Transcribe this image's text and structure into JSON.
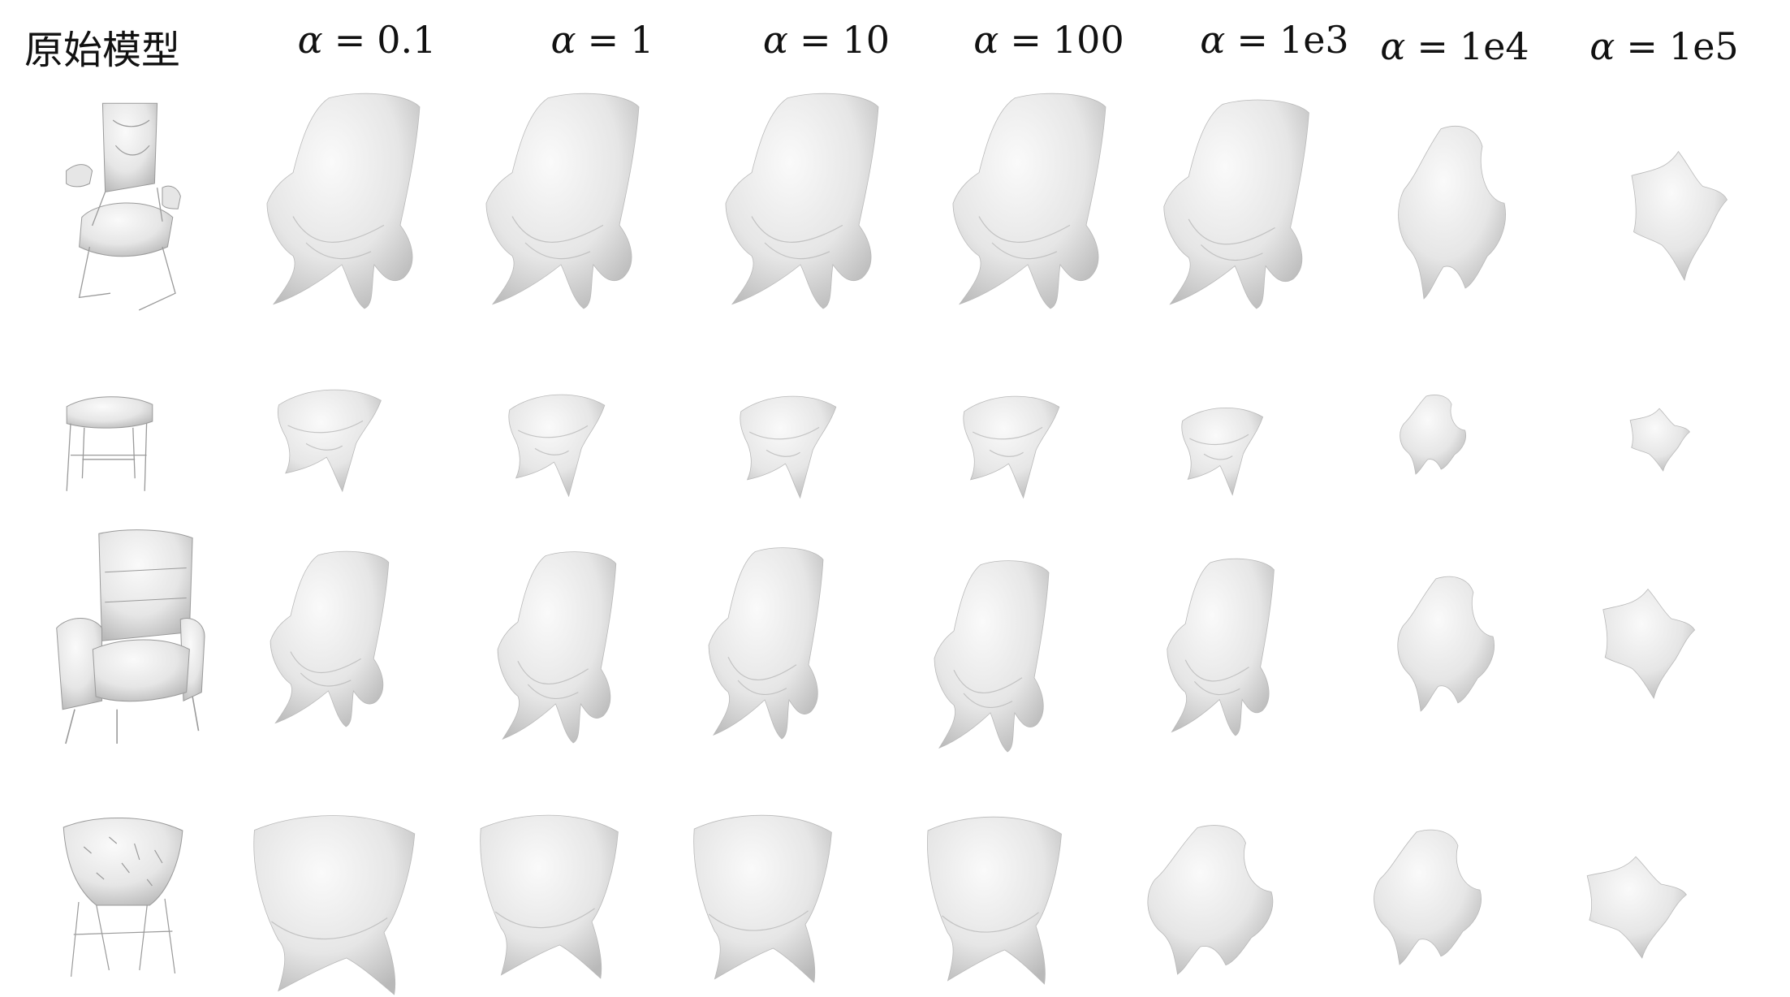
{
  "figure": {
    "header_original": "原始模型",
    "alpha_symbol": "α",
    "columns": [
      {
        "value": "0.1"
      },
      {
        "value": "1"
      },
      {
        "value": "10"
      },
      {
        "value": "100"
      },
      {
        "value": "1e3"
      },
      {
        "value": "1e4"
      },
      {
        "value": "1e5"
      }
    ],
    "rows": [
      {
        "original": "office-chair-with-armrests"
      },
      {
        "original": "stool"
      },
      {
        "original": "upholstered-armchair"
      },
      {
        "original": "bowl-chair"
      }
    ],
    "colors": {
      "mesh_fill": "#e6e6e6",
      "mesh_shadow": "#b9b9b9",
      "mesh_highlight": "#fafafa",
      "line": "#9a9a9a"
    }
  }
}
